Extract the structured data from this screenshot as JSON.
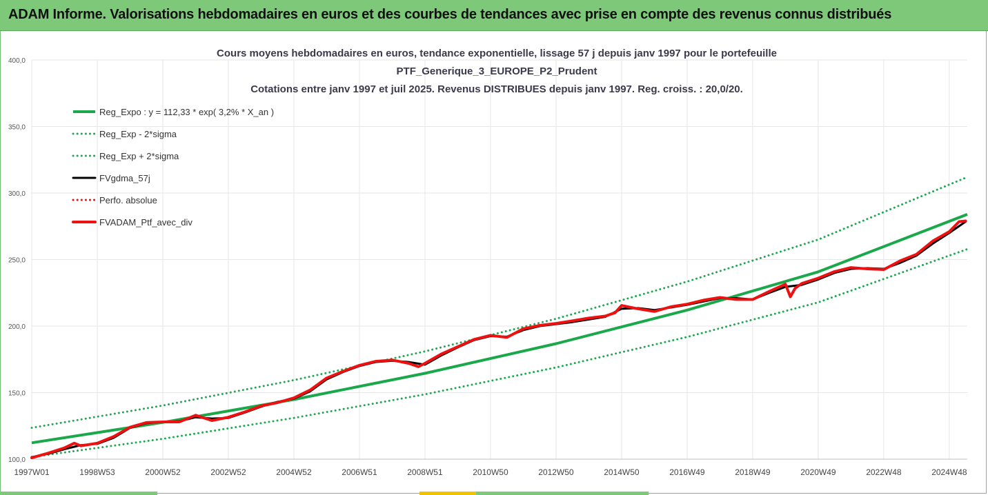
{
  "header": {
    "title": "ADAM Informe. Valorisations hebdomadaires en euros et des courbes de tendances avec prise en compte des revenus connus distribués"
  },
  "colors": {
    "header_bg": "#7ec87a",
    "reg_green": "#1aa84a",
    "dotted_green": "#21a852",
    "black": "#000000",
    "red": "#ee1111",
    "grid": "#e6e6e6"
  },
  "chart_data": {
    "type": "line",
    "title_lines": [
      "Cours moyens hebdomadaires  en euros, tendance exponentielle, lissage 57 j depuis janv 1997 pour le portefeuille",
      "PTF_Generique_3_EUROPE_P2_Prudent",
      "Cotations  entre janv 1997 et juil 2025. Revenus DISTRIBUES depuis janv 1997. Reg. croiss. : 20,0/20."
    ],
    "y_ticks": [
      "400,0",
      "350,0",
      "300,0",
      "250,0",
      "200,0",
      "150,0",
      "100,0"
    ],
    "y_tick_values": [
      400,
      350,
      300,
      250,
      200,
      150,
      100
    ],
    "ylim": [
      100,
      400
    ],
    "x_ticks": [
      "1997W01",
      "1998W53",
      "2000W52",
      "2002W52",
      "2004W52",
      "2006W51",
      "2008W51",
      "2010W50",
      "2012W50",
      "2014W50",
      "2016W49",
      "2018W49",
      "2020W49",
      "2022W48",
      "2024W48"
    ],
    "x_tick_years": [
      1997.0,
      1999.0,
      2001.0,
      2003.0,
      2005.0,
      2007.0,
      2009.0,
      2011.0,
      2013.0,
      2015.0,
      2017.0,
      2019.0,
      2021.0,
      2023.0,
      2025.0
    ],
    "xlim": [
      1997.0,
      2025.55
    ],
    "grid": true,
    "legend_position": "top-left",
    "series": [
      {
        "name": "Reg_Expo : y = 112,33 * exp( 3,2% *  X_an )",
        "style": "solid-green",
        "x": [
          1997,
          2001,
          2005,
          2009,
          2013,
          2017,
          2021,
          2025.55
        ],
        "y": [
          112.3,
          127.6,
          144.8,
          164.5,
          186.8,
          212.0,
          240.8,
          284.0
        ]
      },
      {
        "name": "Reg_Exp - 2*sigma",
        "style": "dotted-green",
        "x": [
          1997,
          2001,
          2005,
          2009,
          2013,
          2017,
          2021,
          2025.55
        ],
        "y": [
          101.6,
          115.3,
          131.0,
          148.7,
          168.9,
          191.8,
          217.8,
          257.8
        ]
      },
      {
        "name": "Reg_Exp + 2*sigma",
        "style": "dotted-green",
        "x": [
          1997,
          2001,
          2005,
          2009,
          2013,
          2017,
          2021,
          2025.55
        ],
        "y": [
          123.6,
          140.3,
          159.4,
          181.0,
          205.5,
          233.4,
          265.0,
          312.0
        ]
      },
      {
        "name": "FVgdma_57j",
        "style": "solid-black",
        "x": [
          1997.0,
          1997.5,
          1998.0,
          1998.5,
          1999.0,
          1999.5,
          2000.0,
          2000.5,
          2001.0,
          2001.5,
          2002.0,
          2002.5,
          2003.0,
          2003.5,
          2004.0,
          2004.5,
          2005.0,
          2005.5,
          2006.0,
          2006.5,
          2007.0,
          2007.5,
          2008.0,
          2008.5,
          2009.0,
          2009.5,
          2010.0,
          2010.5,
          2011.0,
          2011.5,
          2012.0,
          2012.5,
          2013.0,
          2013.5,
          2014.0,
          2014.5,
          2015.0,
          2015.5,
          2016.0,
          2016.5,
          2017.0,
          2017.5,
          2018.0,
          2018.5,
          2019.0,
          2019.5,
          2020.0,
          2020.5,
          2021.0,
          2021.5,
          2022.0,
          2022.5,
          2023.0,
          2023.5,
          2024.0,
          2024.5,
          2025.0,
          2025.5
        ],
        "y": [
          101.5,
          104.0,
          107.5,
          110.5,
          111.5,
          116.0,
          123.5,
          127.0,
          128.0,
          128.5,
          131.5,
          130.5,
          131.0,
          135.0,
          139.5,
          143.0,
          145.5,
          151.0,
          160.0,
          165.5,
          170.0,
          173.0,
          174.0,
          173.0,
          171.0,
          178.0,
          184.0,
          189.5,
          192.5,
          192.0,
          197.0,
          200.0,
          201.5,
          203.0,
          205.0,
          207.0,
          213.0,
          213.5,
          212.0,
          214.0,
          216.0,
          218.5,
          221.0,
          221.0,
          220.0,
          225.0,
          229.5,
          231.0,
          235.0,
          240.0,
          243.0,
          243.5,
          243.0,
          247.5,
          253.0,
          262.0,
          270.0,
          278.5
        ]
      },
      {
        "name": "Perfo. absolue",
        "style": "dotted-red",
        "x": [
          1997.0,
          1997.5,
          1998.0,
          1998.5,
          1999.0,
          1999.5,
          2000.0,
          2000.5,
          2001.0,
          2001.5,
          2002.0,
          2002.5,
          2003.0,
          2003.5,
          2004.0,
          2004.5,
          2005.0,
          2005.5,
          2006.0,
          2006.5,
          2007.0,
          2007.5,
          2008.0,
          2008.5,
          2009.0,
          2009.5,
          2010.0,
          2010.5,
          2011.0,
          2011.5,
          2012.0,
          2012.5,
          2013.0,
          2013.5,
          2014.0,
          2014.5,
          2015.0,
          2015.5,
          2016.0,
          2016.5,
          2017.0,
          2017.5,
          2018.0,
          2018.5,
          2019.0,
          2019.5,
          2020.0,
          2020.5,
          2021.0,
          2021.5,
          2022.0,
          2022.5,
          2023.0,
          2023.5,
          2024.0,
          2024.5,
          2025.0,
          2025.5
        ],
        "y": [
          101.5,
          104.0,
          107.5,
          110.5,
          111.5,
          116.0,
          123.5,
          127.0,
          128.0,
          128.5,
          131.5,
          130.5,
          131.0,
          135.0,
          139.5,
          143.0,
          145.5,
          151.0,
          160.0,
          165.5,
          170.0,
          173.0,
          174.0,
          173.0,
          171.0,
          178.0,
          184.0,
          189.5,
          192.5,
          192.0,
          197.0,
          200.0,
          201.5,
          203.0,
          205.0,
          207.0,
          213.0,
          213.5,
          212.0,
          214.0,
          216.0,
          218.5,
          221.0,
          221.0,
          220.0,
          225.0,
          229.5,
          231.0,
          235.0,
          240.0,
          243.0,
          243.5,
          243.0,
          247.5,
          253.0,
          262.0,
          270.0,
          278.5
        ]
      },
      {
        "name": "FVADAM_Ptf_avec_div",
        "style": "solid-red",
        "x": [
          1997.0,
          1997.5,
          1998.0,
          1998.3,
          1998.5,
          1999.0,
          1999.5,
          2000.0,
          2000.5,
          2001.0,
          2001.5,
          2002.0,
          2002.5,
          2003.0,
          2003.5,
          2004.0,
          2004.5,
          2005.0,
          2005.5,
          2006.0,
          2006.5,
          2007.0,
          2007.5,
          2008.0,
          2008.5,
          2008.8,
          2009.0,
          2009.5,
          2010.0,
          2010.5,
          2011.0,
          2011.5,
          2012.0,
          2012.5,
          2013.0,
          2013.5,
          2014.0,
          2014.5,
          2014.8,
          2015.0,
          2015.5,
          2016.0,
          2016.5,
          2017.0,
          2017.5,
          2018.0,
          2018.5,
          2019.0,
          2019.5,
          2020.0,
          2020.15,
          2020.3,
          2020.5,
          2021.0,
          2021.5,
          2022.0,
          2022.5,
          2023.0,
          2023.5,
          2024.0,
          2024.5,
          2025.0,
          2025.3,
          2025.5
        ],
        "y": [
          101.0,
          104.5,
          108.5,
          112.0,
          110.0,
          112.0,
          117.0,
          124.0,
          127.5,
          128.0,
          128.0,
          133.0,
          129.0,
          131.5,
          135.5,
          140.0,
          142.5,
          146.0,
          152.0,
          161.0,
          166.0,
          170.5,
          173.5,
          174.5,
          172.0,
          169.5,
          172.0,
          179.0,
          184.5,
          190.0,
          193.0,
          191.5,
          198.0,
          200.5,
          202.0,
          204.0,
          206.0,
          207.5,
          210.0,
          215.5,
          213.0,
          211.0,
          214.5,
          216.5,
          219.5,
          221.5,
          220.0,
          220.0,
          226.0,
          231.5,
          222.0,
          228.5,
          232.0,
          236.0,
          241.0,
          244.0,
          243.0,
          242.5,
          249.0,
          254.0,
          264.0,
          271.0,
          278.5,
          279.0
        ]
      }
    ]
  }
}
